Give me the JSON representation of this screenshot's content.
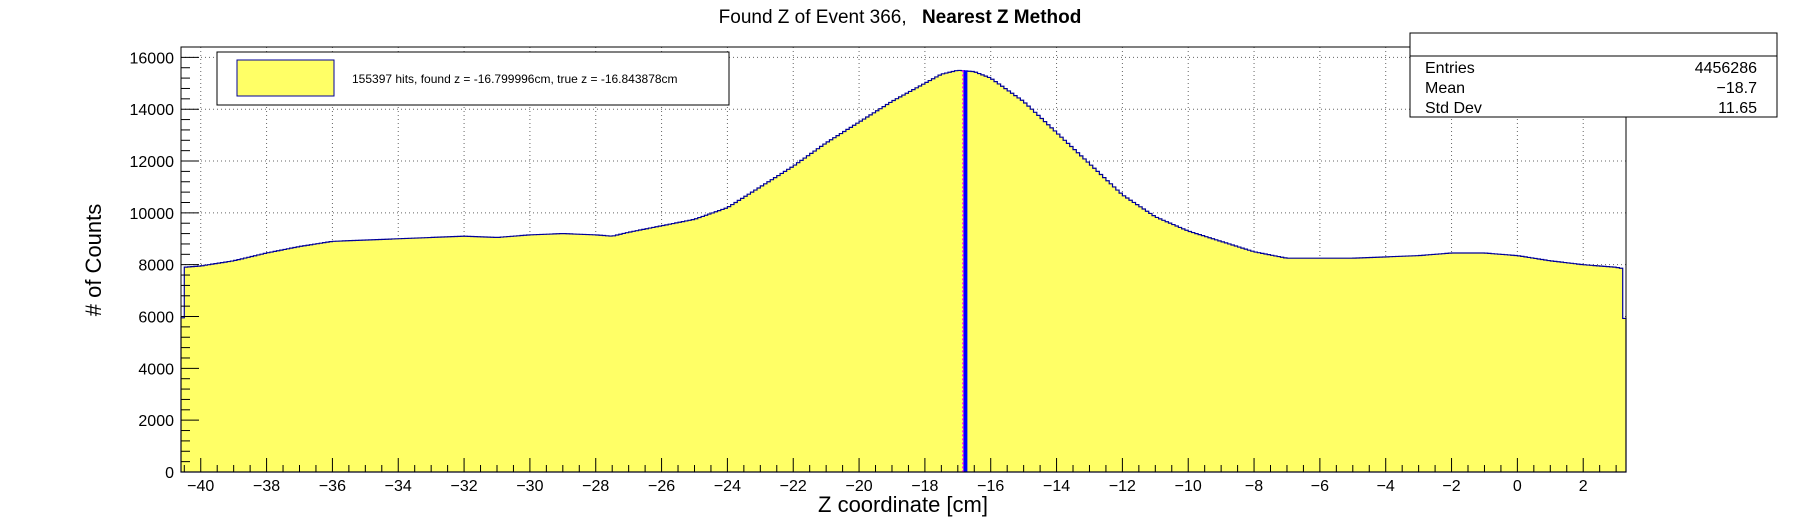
{
  "title": {
    "prefix": "Found Z of Event 366,",
    "method": "Nearest Z Method"
  },
  "legend": {
    "text": "155397 hits, found z = -16.799996cm, true z = -16.843878cm",
    "fill_color": "#ffff66"
  },
  "stats": {
    "rows": [
      {
        "label": "Entries",
        "value": "4456286"
      },
      {
        "label": "Mean",
        "value": "−18.7"
      },
      {
        "label": "Std Dev",
        "value": "11.65"
      }
    ]
  },
  "colors": {
    "fill": "#ffff66",
    "outline": "#000099",
    "found_line": "#0000ff",
    "true_line": "#ff00ff",
    "grid": "#000000"
  },
  "chart_data": {
    "type": "area",
    "title": "Found Z of Event 366, Nearest Z Method",
    "xlabel": "Z coordinate [cm]",
    "ylabel": "# of Counts",
    "xlim": [
      -40.6,
      3.3
    ],
    "ylim": [
      0,
      16400
    ],
    "grid": true,
    "legend_position": "top-left",
    "x_ticks": [
      -40,
      -38,
      -36,
      -34,
      -32,
      -30,
      -28,
      -26,
      -24,
      -22,
      -20,
      -18,
      -16,
      -14,
      -12,
      -10,
      -8,
      -6,
      -4,
      -2,
      0,
      2
    ],
    "x_tick_labels": [
      "−40",
      "−38",
      "−36",
      "−34",
      "−32",
      "−30",
      "−28",
      "−26",
      "−24",
      "−22",
      "−20",
      "−18",
      "−16",
      "−14",
      "−12",
      "−10",
      "−8",
      "−6",
      "−4",
      "−2",
      "0",
      "2"
    ],
    "y_ticks": [
      0,
      2000,
      4000,
      6000,
      8000,
      10000,
      12000,
      14000,
      16000
    ],
    "y_tick_labels": [
      "0",
      "2000",
      "4000",
      "6000",
      "8000",
      "10000",
      "12000",
      "14000",
      "16000"
    ],
    "series": [
      {
        "x": [
          -40.6,
          -40.5,
          -40,
          -39,
          -38,
          -37,
          -36,
          -35,
          -34,
          -33,
          -32,
          -31,
          -30,
          -29,
          -28,
          -27.5,
          -27,
          -26,
          -25,
          -24,
          -23,
          -22,
          -21,
          -20,
          -19,
          -18,
          -17.5,
          -17,
          -16.5,
          -16,
          -15,
          -14,
          -13,
          -12,
          -11,
          -10,
          -9,
          -8,
          -7,
          -6,
          -5,
          -4,
          -3,
          -2,
          -1,
          0,
          1,
          2,
          3,
          3.2,
          3.3
        ],
        "y": [
          4000,
          7900,
          7950,
          8150,
          8450,
          8700,
          8900,
          8950,
          9000,
          9050,
          9100,
          9050,
          9150,
          9200,
          9150,
          9100,
          9250,
          9500,
          9750,
          10200,
          11000,
          11800,
          12700,
          13500,
          14300,
          15000,
          15350,
          15500,
          15450,
          15200,
          14300,
          13100,
          11900,
          10700,
          9850,
          9300,
          8900,
          8500,
          8250,
          8250,
          8250,
          8300,
          8350,
          8450,
          8450,
          8350,
          8150,
          8000,
          7900,
          7850,
          4000
        ]
      }
    ],
    "vlines": [
      {
        "name": "found z",
        "x": -16.799996
      },
      {
        "name": "true z",
        "x": -16.843878
      }
    ]
  }
}
